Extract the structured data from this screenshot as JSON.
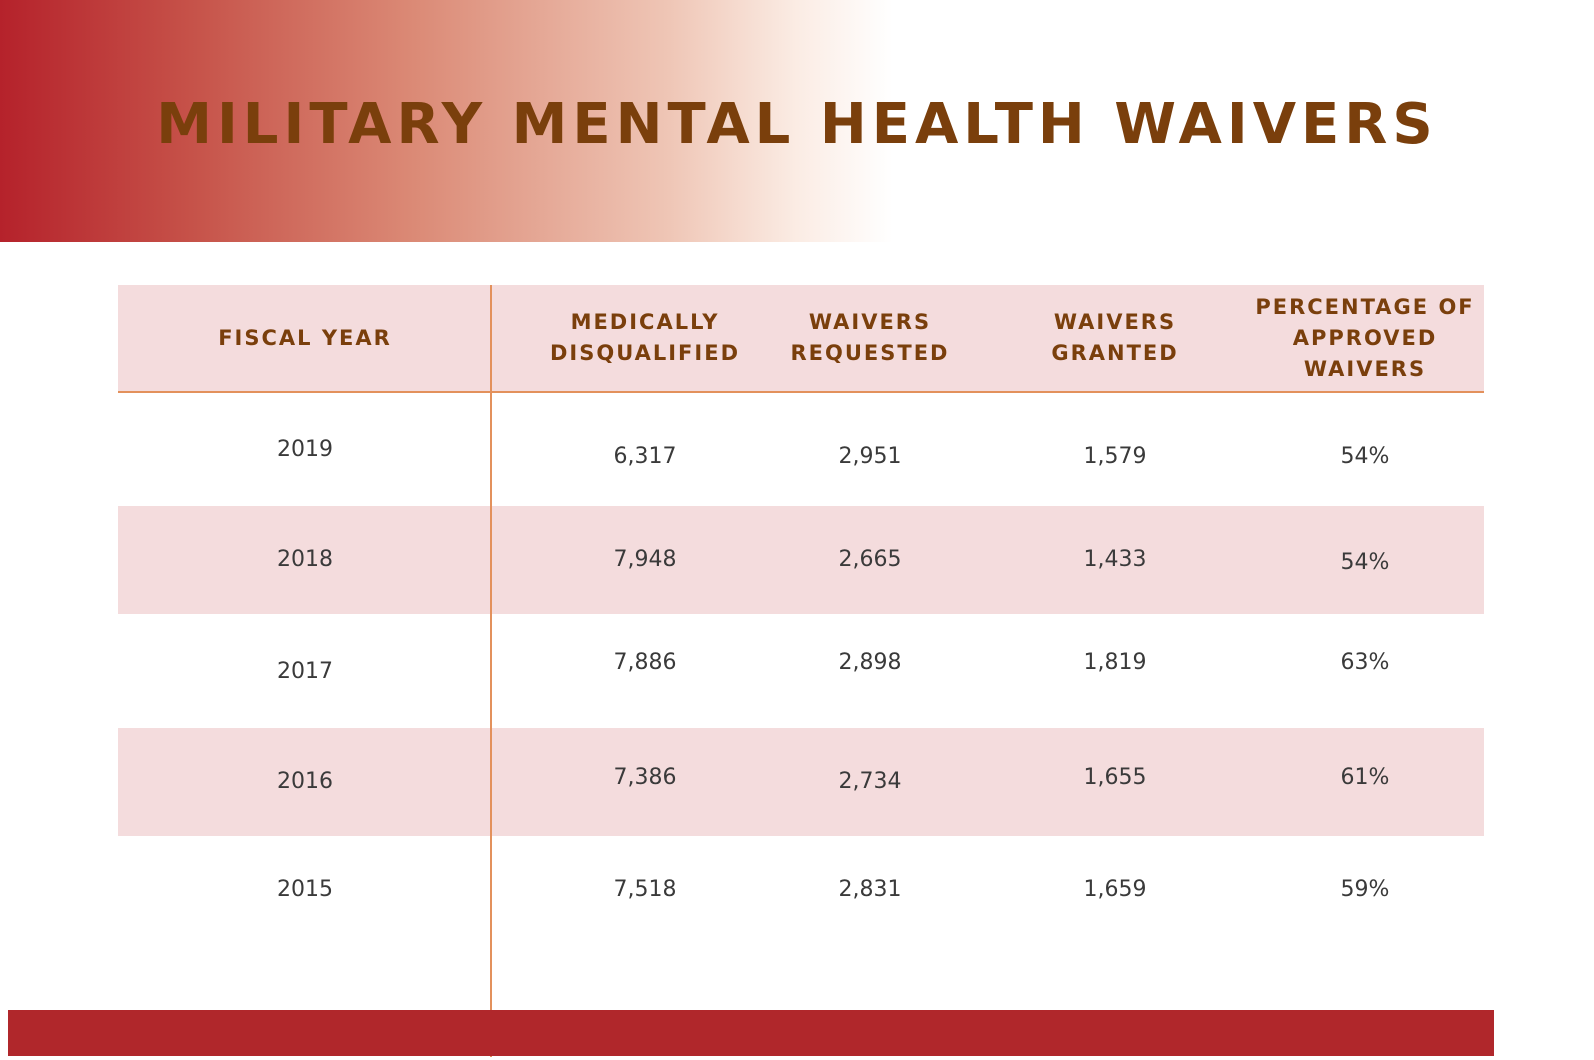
{
  "title": "MILITARY MENTAL HEALTH WAIVERS",
  "colors": {
    "accent_red": "#b0272b",
    "title_brown": "#7a3f0c",
    "row_band": "#f4dcdd",
    "rule_orange": "#e3915c"
  },
  "chart_data": {
    "type": "table",
    "title": "MILITARY MENTAL HEALTH WAIVERS",
    "columns": [
      "FISCAL YEAR",
      "MEDICALLY\nDISQUALIFIED",
      "WAIVERS\nREQUESTED",
      "WAIVERS\nGRANTED",
      "PERCENTAGE OF\nAPPROVED\nWAIVERS"
    ],
    "rows": [
      [
        "2019",
        "6,317",
        "2,951",
        "1,579",
        "54%"
      ],
      [
        "2018",
        "7,948",
        "2,665",
        "1,433",
        "54%"
      ],
      [
        "2017",
        "7,886",
        "2,898",
        "1,819",
        "63%"
      ],
      [
        "2016",
        "7,386",
        "2,734",
        "1,655",
        "61%"
      ],
      [
        "2015",
        "7,518",
        "2,831",
        "1,659",
        "59%"
      ]
    ]
  }
}
